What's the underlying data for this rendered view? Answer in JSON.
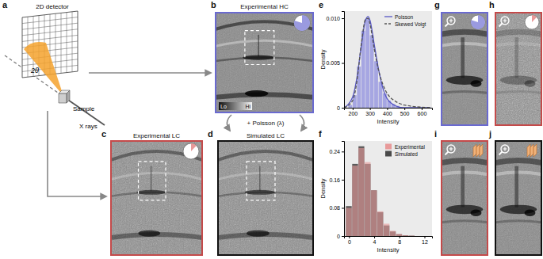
{
  "chart_data": [
    {
      "type": "histogram",
      "bins": [
        175,
        200,
        225,
        250,
        275,
        300,
        325,
        350,
        375,
        400,
        425,
        450,
        475
      ],
      "values": [
        0.0003,
        0.0014,
        0.0046,
        0.0086,
        0.01,
        0.0081,
        0.0052,
        0.0029,
        0.0016,
        0.0008,
        0.0004,
        0.0002
      ],
      "color": "#9a9ae0",
      "series": [
        {
          "name": "Poisson",
          "type": "line",
          "color": "#5656c4",
          "line_style": "solid",
          "x": [
            150,
            200,
            225,
            250,
            275,
            290,
            300,
            325,
            350,
            375,
            400,
            450,
            500,
            650
          ],
          "values": [
            0,
            0.0012,
            0.0034,
            0.0069,
            0.0098,
            0.0102,
            0.0098,
            0.0071,
            0.0043,
            0.0022,
            0.001,
            0.0002,
            0,
            0
          ]
        },
        {
          "name": "Skewed Voigt",
          "type": "line",
          "color": "#555555",
          "line_style": "dashed",
          "x": [
            150,
            200,
            225,
            250,
            275,
            290,
            300,
            325,
            350,
            375,
            400,
            450,
            500,
            650
          ],
          "values": [
            0,
            0.0008,
            0.003,
            0.0071,
            0.0099,
            0.01,
            0.0094,
            0.0066,
            0.0042,
            0.0026,
            0.0016,
            0.0007,
            0.0003,
            0
          ]
        }
      ],
      "x_label": "Intensity",
      "y_label": "Density",
      "xlim": [
        150,
        660
      ],
      "ylim": [
        0,
        0.0108
      ],
      "xticks": [
        200,
        300,
        400,
        500,
        600
      ],
      "yticks": [
        0,
        0.005,
        {
          "value": 0.01,
          "label": "0.010"
        }
      ],
      "legend": "upper right"
    },
    {
      "type": "histogram",
      "bins": [
        -0.5,
        0.5,
        1.5,
        2.5,
        3.5,
        4.5,
        5.5,
        6.5,
        7.5,
        8.5,
        9.5,
        10.5,
        11.5,
        12.5
      ],
      "series": [
        {
          "name": "Experimental",
          "color": "#e89a9a",
          "values": [
            0.08,
            0.2,
            0.25,
            0.21,
            0.13,
            0.07,
            0.035,
            0.015,
            0.006,
            0.002,
            0.001,
            0,
            0
          ]
        },
        {
          "name": "Simulated",
          "color": "#4a4a4a",
          "values": [
            0.085,
            0.205,
            0.255,
            0.205,
            0.13,
            0.068,
            0.03,
            0.013,
            0.005,
            0.002,
            0.001,
            0,
            0
          ]
        }
      ],
      "x_label": "Intensity",
      "y_label": "Density",
      "xlim": [
        -0.8,
        13.2
      ],
      "ylim": [
        0,
        0.27
      ],
      "xticks": [
        0,
        4,
        8,
        12
      ],
      "yticks": [
        0,
        0.08,
        0.16,
        0.24
      ],
      "legend": "upper right"
    }
  ],
  "figure": {
    "panels": [
      {
        "letter": "a",
        "annotations": [
          "2D detector",
          "Sample",
          "X rays",
          "2θ"
        ]
      },
      {
        "letter": "b",
        "title": "Experimental HC",
        "annotations": [
          "Lo",
          "Hi"
        ]
      },
      {
        "letter": "c",
        "title": "Experimental LC"
      },
      {
        "letter": "d",
        "title": "Simulated LC"
      },
      {
        "letter": "e"
      },
      {
        "letter": "f"
      },
      {
        "letter": "g"
      },
      {
        "letter": "h"
      },
      {
        "letter": "i"
      },
      {
        "letter": "j"
      }
    ],
    "arrow_label": "+ Poisson (λ)"
  }
}
